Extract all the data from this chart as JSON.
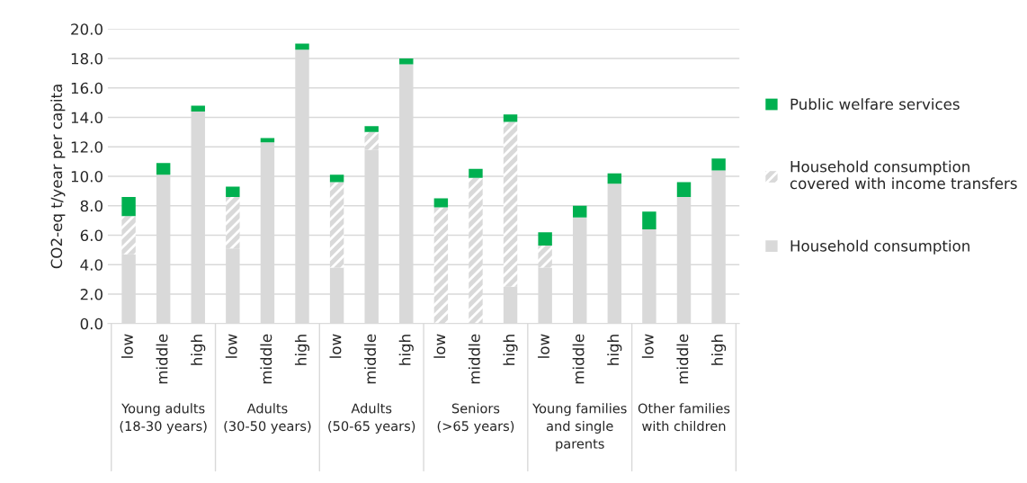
{
  "chart_data": {
    "type": "bar",
    "stacked": true,
    "ylabel": "CO2-eq t/year per capita",
    "categories": [
      "low",
      "middle",
      "high",
      "low",
      "middle",
      "high",
      "low",
      "middle",
      "high",
      "low",
      "middle",
      "high",
      "low",
      "middle",
      "high",
      "low",
      "middle",
      "high"
    ],
    "annotations": [
      "Young adults\n(18-30 years)",
      "Adults\n(30-50 years)",
      "Adults\n(50-65 years)",
      "Seniors\n(>65 years)",
      "Young families\nand single\nparents",
      "Other families\nwith children"
    ],
    "series": [
      {
        "name": "Household consumption",
        "color": "#d9d9d9",
        "values": [
          4.7,
          10.1,
          14.4,
          5.1,
          12.3,
          18.6,
          3.8,
          11.8,
          17.6,
          0,
          0,
          2.5,
          3.8,
          7.2,
          9.5,
          6.4,
          8.6,
          10.4
        ]
      },
      {
        "name": "Household consumption\ncovered with income transfers",
        "color": "#d9d9d9",
        "values": [
          2.6,
          0,
          0,
          3.5,
          0,
          0,
          5.8,
          1.2,
          0,
          7.9,
          9.9,
          11.2,
          1.5,
          0,
          0,
          0,
          0,
          0
        ]
      },
      {
        "name": "Public welfare services",
        "color": "#00b050",
        "values": [
          1.3,
          0.8,
          0.4,
          0.7,
          0.3,
          0.4,
          0.5,
          0.4,
          0.4,
          0.6,
          0.6,
          0.5,
          0.9,
          0.8,
          0.7,
          1.2,
          1.0,
          0.8
        ]
      }
    ],
    "ylim": [
      0,
      20
    ],
    "yticks": [
      {
        "value": 0,
        "label": "0.0"
      },
      {
        "value": 2,
        "label": "2.0"
      },
      {
        "value": 4,
        "label": "4.0"
      },
      {
        "value": 6,
        "label": "6.0"
      },
      {
        "value": 8,
        "label": "8.0"
      },
      {
        "value": 10,
        "label": "10.0"
      },
      {
        "value": 12,
        "label": "12.0"
      },
      {
        "value": 14,
        "label": "14.0"
      },
      {
        "value": 16,
        "label": "16.0"
      },
      {
        "value": 18,
        "label": "18.0"
      },
      {
        "value": 20,
        "label": "20.0"
      }
    ],
    "grid": "y",
    "legend": "right"
  }
}
